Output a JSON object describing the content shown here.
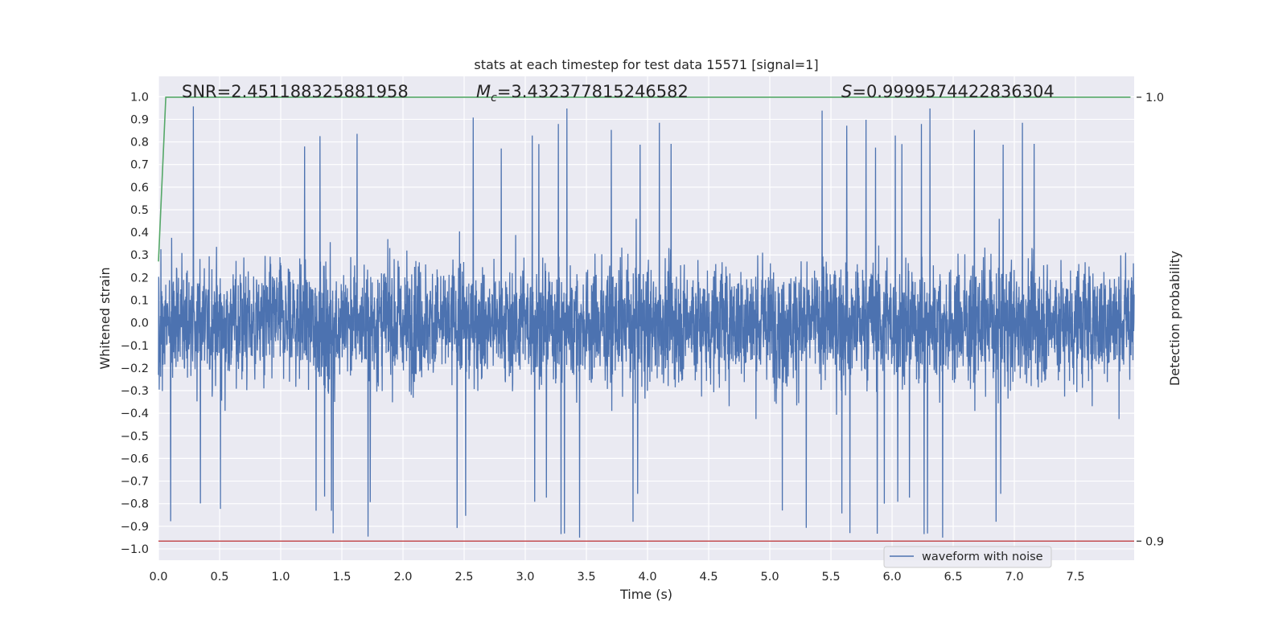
{
  "chart_data": {
    "type": "line",
    "title": "stats at each timestep for test data 15571 [signal=1]",
    "xlabel": "Time (s)",
    "ylabel": "Whitened strain",
    "y2label": "Detection probability",
    "xlim": [
      0.0,
      7.98
    ],
    "ylim": [
      -1.05,
      1.09
    ],
    "y2lim": [
      0.8957,
      1.0047
    ],
    "x_ticks": [
      "0.0",
      "0.5",
      "1.0",
      "1.5",
      "2.0",
      "2.5",
      "3.0",
      "3.5",
      "4.0",
      "4.5",
      "5.0",
      "5.5",
      "6.0",
      "6.5",
      "7.0",
      "7.5"
    ],
    "y_ticks": [
      "−1.0",
      "−0.9",
      "−0.8",
      "−0.7",
      "−0.6",
      "−0.5",
      "−0.4",
      "−0.3",
      "−0.2",
      "−0.1",
      "0.0",
      "0.1",
      "0.2",
      "0.3",
      "0.4",
      "0.5",
      "0.6",
      "0.7",
      "0.8",
      "0.9",
      "1.0"
    ],
    "y2_ticks": [
      "0.9",
      "1.0"
    ],
    "grid": true,
    "legend_position": "lower-right",
    "annotations": {
      "snr": "SNR=2.451188325881958",
      "mc_symbol": "M",
      "mc_subscript": "c",
      "mc_value": "=3.432377815246582",
      "s_symbol": "S",
      "s_value": "=0.9999574422836304"
    },
    "series": [
      {
        "name": "waveform with noise",
        "color": "#4c72b0",
        "description_x_range": [
          0.0,
          7.98
        ],
        "amplitude_envelope": {
          "typical_max": 0.55,
          "typical_min": -0.55,
          "peak_max": 1.0,
          "peak_min": -0.95
        }
      },
      {
        "color": "#55a868",
        "axis": "right",
        "x": [
          0.0,
          0.06,
          7.95
        ],
        "y": [
          0.963,
          1.0,
          1.0
        ]
      },
      {
        "color": "#c44e52",
        "axis": "right",
        "x": [
          0.0,
          7.98
        ],
        "y": [
          0.9,
          0.9
        ]
      }
    ],
    "background_color": "#eaeaf2",
    "grid_color": "#ffffff"
  }
}
